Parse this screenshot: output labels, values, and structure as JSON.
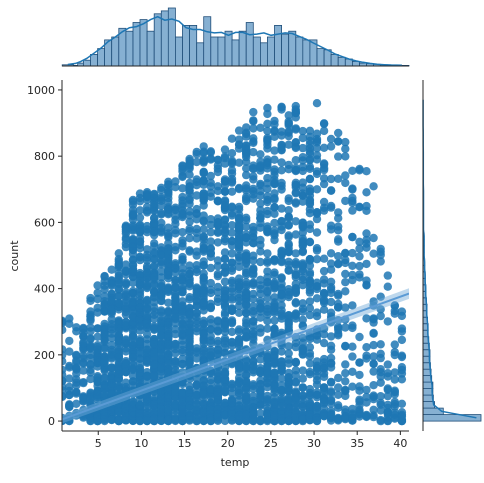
{
  "chart_data": {
    "type": "scatter",
    "subtype": "joint-plot with regression line and marginal histograms + KDE",
    "xlabel": "temp",
    "ylabel": "count",
    "xlim": [
      0.8,
      41.0
    ],
    "ylim": [
      -30,
      1030
    ],
    "x_ticks": [
      5,
      10,
      15,
      20,
      25,
      30,
      35,
      40
    ],
    "y_ticks": [
      0,
      200,
      400,
      600,
      800,
      1000
    ],
    "grid": false,
    "legend": "none",
    "colors": {
      "points": "#1f77b4",
      "hist_fill": "#86b0d2",
      "edge": "#1f4e79",
      "kde": "#1f77b4"
    },
    "regression": {
      "x": [
        0.8,
        41.0
      ],
      "y": [
        5,
        385
      ]
    },
    "marginal_x": {
      "bins": [
        0.82,
        2.13,
        2.62,
        3.28,
        4.1,
        4.92,
        5.74,
        6.56,
        7.38,
        8.2,
        9.02,
        9.84,
        10.66,
        11.48,
        12.3,
        13.12,
        13.94,
        14.76,
        15.58,
        16.4,
        17.22,
        18.04,
        18.86,
        19.68,
        20.5,
        21.32,
        22.14,
        22.96,
        23.78,
        24.6,
        25.42,
        26.24,
        27.06,
        27.88,
        28.7,
        29.52,
        30.34,
        31.16,
        31.98,
        32.8,
        33.62,
        34.44,
        35.26,
        36.08,
        36.9,
        37.72,
        38.54,
        39.36,
        41.0
      ],
      "counts": [
        0.02,
        0.01,
        0.05,
        0.1,
        0.2,
        0.3,
        0.45,
        0.5,
        0.65,
        0.6,
        0.75,
        0.8,
        0.6,
        0.9,
        0.95,
        1.0,
        0.5,
        0.7,
        0.7,
        0.4,
        0.85,
        0.5,
        0.5,
        0.6,
        0.45,
        0.6,
        0.75,
        0.5,
        0.4,
        0.5,
        0.7,
        0.55,
        0.6,
        0.5,
        0.45,
        0.45,
        0.3,
        0.28,
        0.2,
        0.15,
        0.12,
        0.08,
        0.05,
        0.04,
        0.03,
        0.02,
        0.01,
        0.01
      ]
    },
    "marginal_y": {
      "bin_width": 19.6,
      "counts": [
        1.0,
        0.35,
        0.2,
        0.18,
        0.17,
        0.17,
        0.15,
        0.14,
        0.13,
        0.12,
        0.12,
        0.11,
        0.1,
        0.09,
        0.09,
        0.08,
        0.07,
        0.07,
        0.06,
        0.05,
        0.05,
        0.04,
        0.04,
        0.03,
        0.03,
        0.02,
        0.02,
        0.02,
        0.02,
        0.01,
        0.01,
        0.01,
        0.01,
        0.01,
        0.01,
        0.01,
        0.005,
        0.005,
        0.005,
        0.005,
        0.005,
        0.005,
        0.003,
        0.003,
        0.003,
        0.002,
        0.002,
        0.002,
        0.002,
        0.001
      ],
      "range": [
        0,
        980
      ]
    },
    "upper_envelope": {
      "x": [
        0.82,
        3,
        5,
        7,
        9,
        11,
        13,
        15,
        17,
        19,
        21,
        23,
        25,
        27,
        29,
        31,
        33,
        35,
        37,
        39,
        41
      ],
      "y": [
        320,
        300,
        430,
        470,
        680,
        700,
        720,
        780,
        830,
        830,
        870,
        940,
        950,
        975,
        960,
        970,
        890,
        770,
        760,
        380,
        360
      ]
    }
  }
}
